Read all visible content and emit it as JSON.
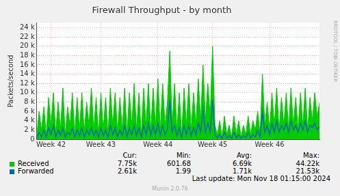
{
  "chart_data": {
    "type": "line",
    "title": "Firewall Throughput - by month",
    "y_label": "Packets/second",
    "categories": [
      null,
      null,
      null,
      null,
      null,
      null,
      "Week 42",
      null,
      null,
      null,
      null,
      null,
      null,
      null,
      null,
      null,
      null,
      null,
      null,
      null,
      null,
      null,
      null,
      null,
      null,
      null,
      null,
      "Week 43",
      null,
      null,
      null,
      null,
      null,
      null,
      null,
      null,
      null,
      null,
      null,
      null,
      null,
      null,
      null,
      null,
      null,
      null,
      null,
      null,
      null,
      null,
      null,
      "Week 44",
      null,
      null,
      null,
      null,
      null,
      null,
      null,
      null,
      null,
      null,
      null,
      null,
      null,
      null,
      null,
      null,
      null,
      null,
      null,
      null,
      null,
      null,
      "Week 45",
      null,
      null,
      null,
      null,
      null,
      null,
      null,
      null,
      null,
      null,
      null,
      null,
      null,
      null,
      null,
      null,
      null,
      null,
      null,
      null,
      null,
      null,
      null,
      "Week 46",
      null,
      null,
      null,
      null,
      null,
      null,
      null,
      null,
      null,
      null,
      null,
      null,
      null,
      null,
      null,
      null,
      null,
      null,
      null,
      null,
      null
    ],
    "series": [
      {
        "name": "Received",
        "color": "#00cc00",
        "type": "area",
        "values": [
          500,
          6000,
          2000,
          7000,
          1000,
          9000,
          3000,
          10000,
          1500,
          8000,
          2000,
          11000,
          1000,
          7000,
          3000,
          10000,
          1000,
          9000,
          2000,
          10000,
          1500,
          8000,
          3000,
          11000,
          2000,
          9000,
          1000,
          10000,
          2000,
          9000,
          1000,
          11000,
          3000,
          10000,
          1500,
          9000,
          2000,
          11000,
          1000,
          10000,
          3000,
          12000,
          2000,
          10000,
          1000,
          11000,
          3000,
          12000,
          2000,
          11000,
          3000,
          13000,
          2000,
          12000,
          3000,
          8000,
          19000,
          3000,
          12000,
          2000,
          10000,
          1000,
          11000,
          3000,
          12000,
          2000,
          10000,
          3000,
          13000,
          4000,
          16000,
          4000,
          12000,
          5000,
          20000,
          3000,
          1000,
          4000,
          500,
          5000,
          1000,
          3000,
          500,
          5000,
          1000,
          4000,
          500,
          3000,
          1000,
          5000,
          1000,
          4000,
          2000,
          6000,
          1000,
          14000,
          3000,
          8000,
          2000,
          10000,
          3000,
          11000,
          2000,
          9000,
          3000,
          10000,
          2000,
          11000,
          3000,
          9000,
          2000,
          10000,
          3000,
          11000,
          2000,
          9000,
          4000,
          10000,
          5000,
          7750
        ],
        "stats": [
          "7.75k",
          "601.68",
          "6.69k",
          "44.22k"
        ]
      },
      {
        "name": "Forwarded",
        "color": "#0066b3",
        "type": "line",
        "values": [
          300,
          1500,
          500,
          2000,
          500,
          2500,
          1000,
          3000,
          500,
          2000,
          800,
          2500,
          500,
          1500,
          1000,
          2500,
          500,
          2000,
          800,
          2500,
          500,
          2000,
          1000,
          2500,
          800,
          2000,
          500,
          2500,
          800,
          2000,
          500,
          3000,
          1000,
          2500,
          500,
          2000,
          800,
          3000,
          500,
          2500,
          1000,
          3000,
          800,
          2500,
          500,
          3000,
          1000,
          3500,
          800,
          3000,
          1000,
          3500,
          800,
          3000,
          1000,
          2000,
          8500,
          1500,
          3000,
          800,
          2500,
          500,
          3000,
          1000,
          3000,
          800,
          2500,
          1000,
          3500,
          1500,
          6500,
          1500,
          3500,
          1500,
          8500,
          1000,
          300,
          1000,
          200,
          1500,
          300,
          800,
          200,
          1500,
          300,
          1000,
          200,
          800,
          300,
          1500,
          300,
          1000,
          500,
          2000,
          500,
          6000,
          1500,
          3000,
          1000,
          3500,
          1500,
          4000,
          1500,
          3000,
          2000,
          3500,
          1500,
          4000,
          2000,
          3000,
          1500,
          3500,
          2000,
          4000,
          1500,
          3000,
          2500,
          3500,
          2000,
          2610
        ],
        "stats": [
          "2.61k",
          "1.99",
          "1.71k",
          "21.53k"
        ]
      }
    ],
    "stats_columns": [
      "Cur:",
      "Min:",
      "Avg:",
      "Max:"
    ],
    "ylim": [
      0,
      25000
    ],
    "yticks": [
      0,
      {
        "value": 2000,
        "label": "2 k"
      },
      {
        "value": 4000,
        "label": "4 k"
      },
      {
        "value": 6000,
        "label": "6 k"
      },
      {
        "value": 8000,
        "label": "8 k"
      },
      {
        "value": 10000,
        "label": "10 k"
      },
      {
        "value": 12000,
        "label": "12 k"
      },
      {
        "value": 14000,
        "label": "14 k"
      },
      {
        "value": 16000,
        "label": "16 k"
      },
      {
        "value": 18000,
        "label": "18 k"
      },
      {
        "value": 20000,
        "label": "20 k"
      },
      {
        "value": 22000,
        "label": "22 k"
      },
      {
        "value": 24000,
        "label": "24 k"
      }
    ],
    "grid": true,
    "last_update": "Last update: Mon Nov 18 01:15:00 2024",
    "footer": "Munin 2.0.76",
    "side_label": "RRDTOOL / TOBI OETIKER"
  }
}
